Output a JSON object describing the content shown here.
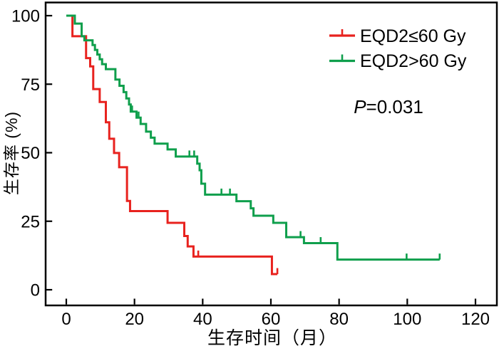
{
  "chart_data": {
    "type": "line",
    "subtype": "kaplan-meier-step",
    "xlabel": "生存时间（月）",
    "ylabel": "生存率 (%)",
    "x_ticks": [
      0,
      20,
      40,
      60,
      80,
      100,
      120
    ],
    "y_ticks": [
      0,
      25,
      50,
      75,
      100
    ],
    "xlim": [
      0,
      126
    ],
    "ylim": [
      0,
      105
    ],
    "grid": false,
    "legend_position": "top-right",
    "axis_color": "#000000",
    "series": [
      {
        "name": "EQD2≤60 Gy",
        "color": "#e8221e",
        "points": [
          [
            0,
            100
          ],
          [
            1.8,
            92.5
          ],
          [
            5.8,
            84.5
          ],
          [
            7.0,
            81.5
          ],
          [
            7.9,
            73.2
          ],
          [
            9.8,
            68.5
          ],
          [
            11.6,
            61.1
          ],
          [
            12.6,
            55.1
          ],
          [
            14.0,
            49.9
          ],
          [
            15.5,
            44.7
          ],
          [
            17.8,
            32.4
          ],
          [
            18.7,
            28.7
          ],
          [
            29.7,
            24.4
          ],
          [
            34.6,
            19.6
          ],
          [
            35.6,
            15.8
          ],
          [
            37.3,
            12.1
          ],
          [
            60.3,
            5.7
          ]
        ],
        "end_time": 61.9,
        "censor_times": [
          38.7,
          61.9
        ]
      },
      {
        "name": "EQD2>60 Gy",
        "color": "#0f9f4c",
        "points": [
          [
            0,
            100
          ],
          [
            2.5,
            97.1
          ],
          [
            4.5,
            92.5
          ],
          [
            5.3,
            91.0
          ],
          [
            7.7,
            89.3
          ],
          [
            8.4,
            87.5
          ],
          [
            9.1,
            85.8
          ],
          [
            9.8,
            84.1
          ],
          [
            10.5,
            82.3
          ],
          [
            11.6,
            80.5
          ],
          [
            14.4,
            76.7
          ],
          [
            15.6,
            74.4
          ],
          [
            16.8,
            72.1
          ],
          [
            17.6,
            69.8
          ],
          [
            18.4,
            67.6
          ],
          [
            18.9,
            65.0
          ],
          [
            20.6,
            62.8
          ],
          [
            21.8,
            60.5
          ],
          [
            23.4,
            57.7
          ],
          [
            24.8,
            55.5
          ],
          [
            25.9,
            53.3
          ],
          [
            29.7,
            51.2
          ],
          [
            32.1,
            48.6
          ],
          [
            38.4,
            46.0
          ],
          [
            39.1,
            43.6
          ],
          [
            39.6,
            38.7
          ],
          [
            40.7,
            34.7
          ],
          [
            49.9,
            32.3
          ],
          [
            54.1,
            29.7
          ],
          [
            54.9,
            27.0
          ],
          [
            60.7,
            24.4
          ],
          [
            64.5,
            19.2
          ],
          [
            69.7,
            17.0
          ],
          [
            79.5,
            11.0
          ]
        ],
        "end_time": 109.5,
        "censor_times": [
          19.3,
          21.2,
          36.1,
          37.5,
          45.5,
          48.0,
          68.7,
          74.6,
          99.8,
          109.5
        ]
      }
    ]
  },
  "annotation": {
    "p_label": "P",
    "p_value": "=0.031"
  }
}
